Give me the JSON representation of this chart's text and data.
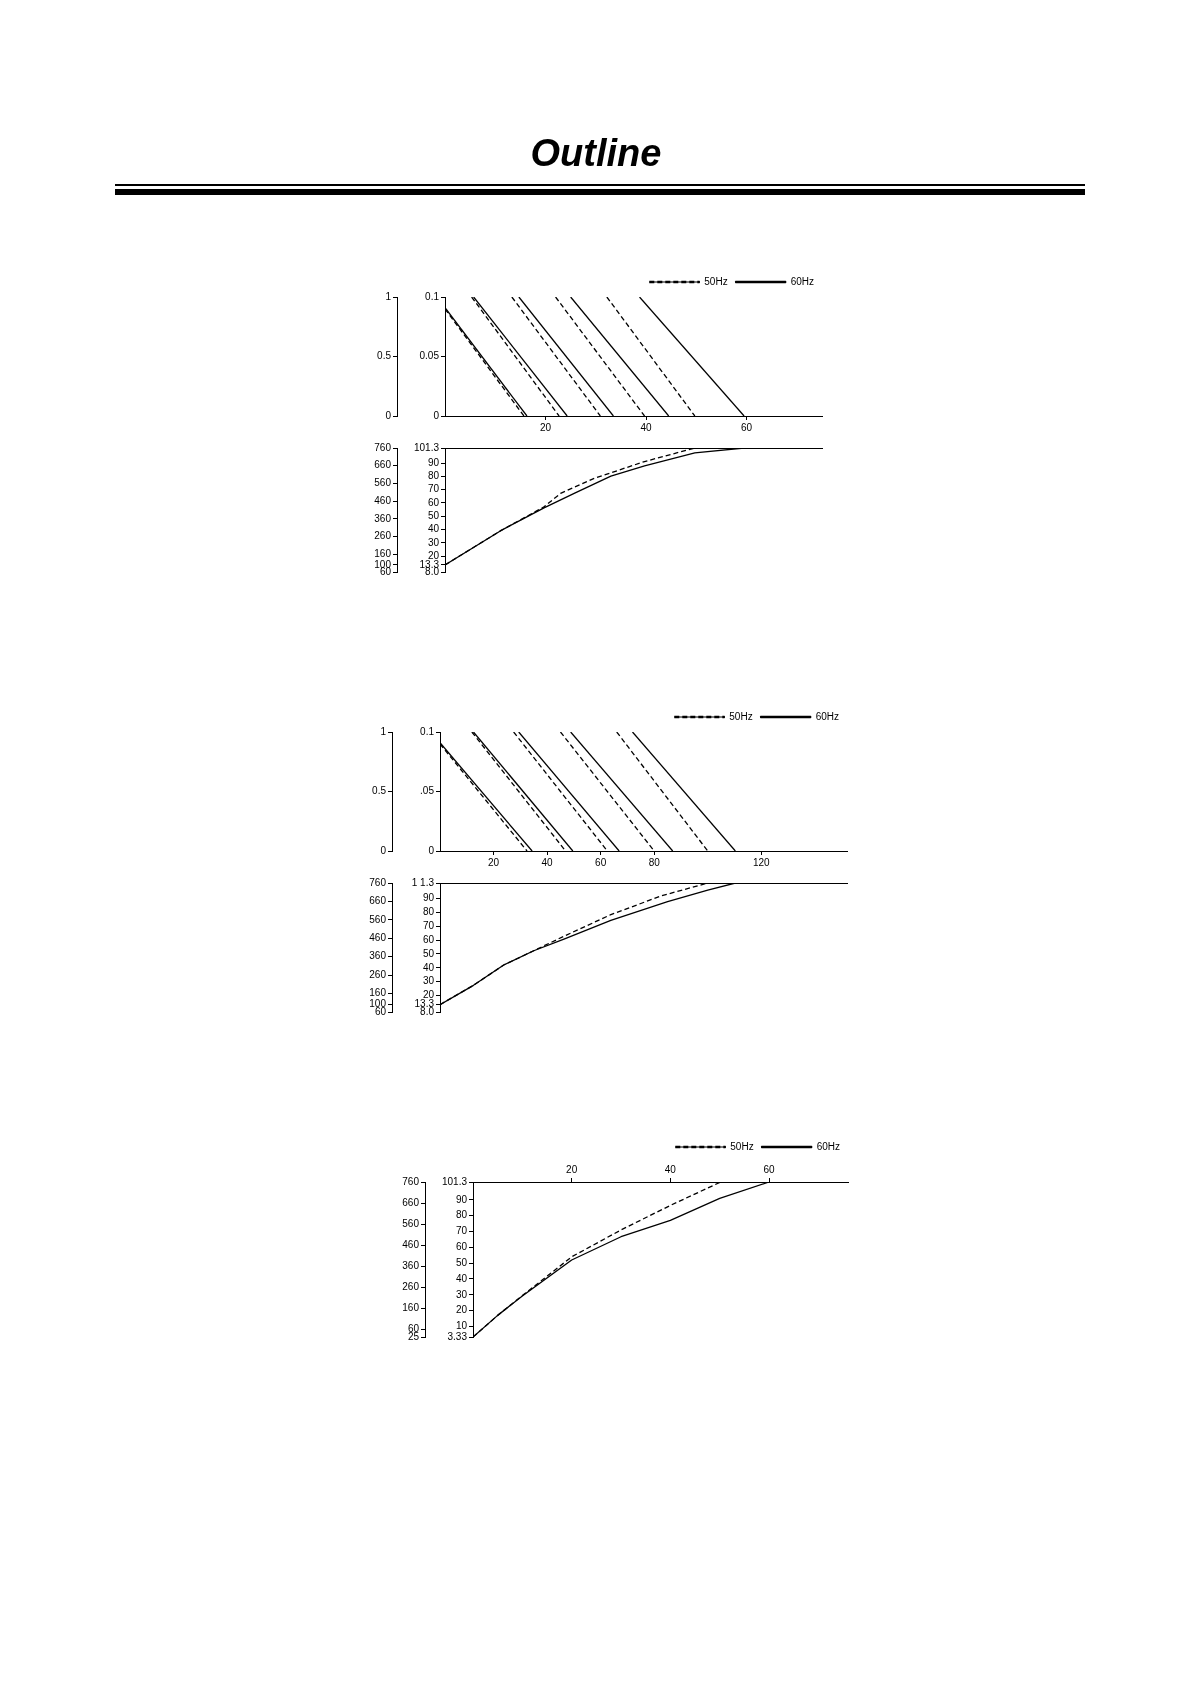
{
  "chart_data": [
    {
      "type": "line",
      "title": "Outline",
      "xlim": [
        0,
        75
      ],
      "xticks": [
        20,
        40,
        60
      ],
      "ylim": [
        0,
        0.1
      ],
      "yticks": [
        0,
        0.05,
        0.1
      ],
      "y2lim": [
        0,
        1
      ],
      "y2ticks": [
        0,
        0.5,
        1
      ],
      "grid": false,
      "legend": "top right",
      "marker": "none",
      "series": [
        {
          "name": "50Hz",
          "color": "#000000",
          "line_style": "dashed",
          "x": [
            0,
            15.7
          ],
          "values": [
            0.09,
            0
          ]
        },
        {
          "name": "60Hz",
          "color": "#000000",
          "line_style": "solid",
          "x": [
            0,
            16.3
          ],
          "values": [
            0.091,
            0
          ]
        },
        {
          "color": "#000000",
          "line_style": "dashed",
          "x": [
            5.3,
            22.7
          ],
          "values": [
            0.1,
            0
          ]
        },
        {
          "color": "#000000",
          "line_style": "solid",
          "x": [
            5.7,
            24.3
          ],
          "values": [
            0.1,
            0
          ]
        },
        {
          "color": "#000000",
          "line_style": "dashed",
          "x": [
            13.3,
            30.9
          ],
          "values": [
            0.1,
            0
          ]
        },
        {
          "color": "#000000",
          "line_style": "solid",
          "x": [
            14.7,
            33.5
          ],
          "values": [
            0.1,
            0
          ]
        },
        {
          "color": "#000000",
          "line_style": "dashed",
          "x": [
            22,
            39.7
          ],
          "values": [
            0.1,
            0
          ]
        },
        {
          "color": "#000000",
          "line_style": "solid",
          "x": [
            25,
            44.5
          ],
          "values": [
            0.1,
            0
          ]
        },
        {
          "color": "#000000",
          "line_style": "dashed",
          "x": [
            32.2,
            49.7
          ],
          "values": [
            0.1,
            0
          ]
        },
        {
          "color": "#000000",
          "line_style": "solid",
          "x": [
            38.7,
            59.5
          ],
          "values": [
            0.1,
            0
          ]
        }
      ]
    },
    {
      "type": "line",
      "xlim": [
        0,
        75
      ],
      "ylim": [
        8.0,
        101.3
      ],
      "yticks": [
        {
          "value": 8.0,
          "label": "8.0"
        },
        13.3,
        20,
        30,
        40,
        50,
        60,
        70,
        80,
        90,
        101.3
      ],
      "y2lim": [
        60,
        760
      ],
      "y2ticks": [
        60,
        100,
        160,
        260,
        360,
        460,
        560,
        660,
        760
      ],
      "grid": false,
      "tick_labels": "y",
      "marker": "none",
      "series": [
        {
          "color": "#000000",
          "line_style": "dashed",
          "x": [
            0,
            11,
            19.7,
            23,
            29.7,
            39.7,
            49.7
          ],
          "values": [
            13.3,
            38.9,
            57,
            67.2,
            78.5,
            91.1,
            101.3
          ]
        },
        {
          "color": "#000000",
          "line_style": "solid",
          "x": [
            0,
            11,
            19.7,
            25.7,
            33,
            39.7,
            49.7,
            59.5
          ],
          "values": [
            13.3,
            38.9,
            56.3,
            67.2,
            80.2,
            87.8,
            97.6,
            101.3
          ]
        }
      ]
    },
    {
      "type": "line",
      "xlim": [
        0,
        152
      ],
      "xticks": [
        20,
        40,
        60,
        80,
        120
      ],
      "ylim": [
        0,
        0.1
      ],
      "yticks": [
        0,
        {
          "value": 0.05,
          "label": ".05"
        },
        0.1
      ],
      "y2lim": [
        0,
        1
      ],
      "y2ticks": [
        0,
        0.5,
        1
      ],
      "grid": false,
      "legend": "top right",
      "marker": "none",
      "series": [
        {
          "name": "50Hz",
          "color": "#000000",
          "line_style": "dashed",
          "x": [
            0,
            32.5
          ],
          "values": [
            0.09,
            0
          ]
        },
        {
          "name": "60Hz",
          "color": "#000000",
          "line_style": "solid",
          "x": [
            0,
            34.4
          ],
          "values": [
            0.091,
            0
          ]
        },
        {
          "color": "#000000",
          "line_style": "dashed",
          "x": [
            11.9,
            46.9
          ],
          "values": [
            0.1,
            0
          ]
        },
        {
          "color": "#000000",
          "line_style": "solid",
          "x": [
            12.5,
            49.6
          ],
          "values": [
            0.1,
            0
          ]
        },
        {
          "color": "#000000",
          "line_style": "dashed",
          "x": [
            27.5,
            62.5
          ],
          "values": [
            0.1,
            0
          ]
        },
        {
          "color": "#000000",
          "line_style": "solid",
          "x": [
            29.4,
            66.9
          ],
          "values": [
            0.1,
            0
          ]
        },
        {
          "color": "#000000",
          "line_style": "dashed",
          "x": [
            45,
            80
          ],
          "values": [
            0.1,
            0
          ]
        },
        {
          "color": "#000000",
          "line_style": "solid",
          "x": [
            48.8,
            86.9
          ],
          "values": [
            0.1,
            0
          ]
        },
        {
          "color": "#000000",
          "line_style": "dashed",
          "x": [
            66,
            100
          ],
          "values": [
            0.1,
            0
          ]
        },
        {
          "color": "#000000",
          "line_style": "solid",
          "x": [
            71.9,
            110.3
          ],
          "values": [
            0.1,
            0
          ]
        }
      ]
    },
    {
      "type": "line",
      "xlim": [
        0,
        152
      ],
      "ylim": [
        8.0,
        101.3
      ],
      "yticks": [
        {
          "value": 8.0,
          "label": "8.0"
        },
        13.3,
        20,
        30,
        40,
        50,
        60,
        70,
        80,
        90,
        {
          "value": 101.3,
          "label": "1 1.3"
        }
      ],
      "y2lim": [
        60,
        760
      ],
      "y2ticks": [
        60,
        100,
        160,
        260,
        360,
        460,
        560,
        660,
        760
      ],
      "grid": false,
      "tick_labels": "y",
      "marker": "none",
      "series": [
        {
          "color": "#000000",
          "line_style": "dashed",
          "x": [
            0,
            12.5,
            23.8,
            35,
            46.3,
            63.8,
            82.5,
            100
          ],
          "values": [
            13.3,
            27.3,
            42,
            52.3,
            62.8,
            78.4,
            91.9,
            101.3
          ]
        },
        {
          "color": "#000000",
          "line_style": "solid",
          "x": [
            0,
            12.5,
            23.8,
            35,
            46.3,
            63.8,
            85,
            100,
            110.3
          ],
          "values": [
            13.3,
            27.3,
            42,
            52.3,
            60.7,
            74.2,
            87.8,
            96.1,
            101.3
          ]
        }
      ]
    },
    {
      "type": "line",
      "xlim": [
        0,
        76
      ],
      "xticks": [
        20,
        40,
        60
      ],
      "ylim": [
        3.33,
        101.3
      ],
      "yticks": [
        3.33,
        10,
        20,
        30,
        40,
        50,
        60,
        70,
        80,
        90,
        101.3
      ],
      "y2lim": [
        25,
        760
      ],
      "y2ticks": [
        25,
        60,
        160,
        260,
        360,
        460,
        560,
        660,
        760
      ],
      "grid": false,
      "legend": "top right",
      "marker": "none",
      "series": [
        {
          "name": "50Hz",
          "color": "#000000",
          "line_style": "dashed",
          "x": [
            0,
            5,
            10,
            20,
            30,
            40,
            50.2
          ],
          "values": [
            3.33,
            17,
            29.5,
            54,
            71,
            86.5,
            101.3
          ]
        },
        {
          "name": "60Hz",
          "color": "#000000",
          "line_style": "solid",
          "x": [
            0,
            5,
            10,
            20,
            30,
            40,
            50,
            60
          ],
          "values": [
            3.33,
            17,
            29.3,
            52,
            66.7,
            77,
            91,
            101.3
          ]
        }
      ]
    }
  ]
}
